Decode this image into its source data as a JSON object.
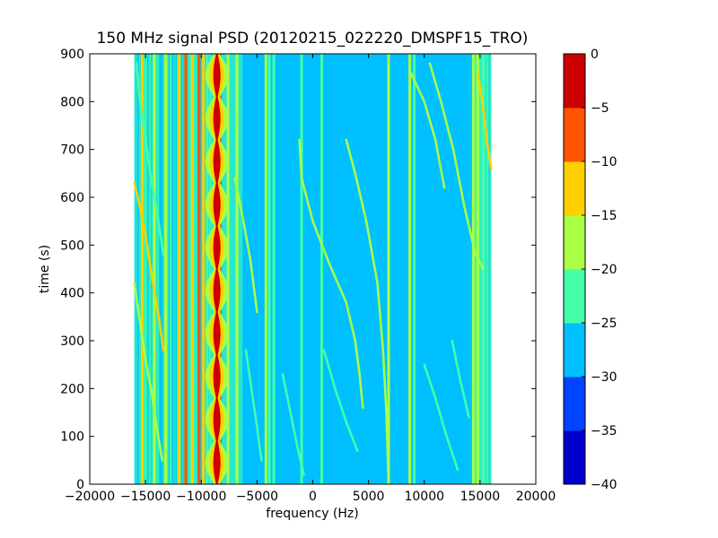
{
  "chart_data": {
    "type": "heatmap",
    "title": "150 MHz signal PSD (20120215_022220_DMSPF15_TRO)",
    "xlabel": "frequency (Hz)",
    "ylabel": "time (s)",
    "xlim": [
      -20000,
      20000
    ],
    "ylim": [
      0,
      900
    ],
    "x_ticks": [
      -20000,
      -15000,
      -10000,
      -5000,
      0,
      5000,
      10000,
      15000,
      20000
    ],
    "x_tick_labels": [
      "−20000",
      "−15000",
      "−10000",
      "−5000",
      "0",
      "5000",
      "10000",
      "15000",
      "20000"
    ],
    "y_ticks": [
      0,
      100,
      200,
      300,
      400,
      500,
      600,
      700,
      800,
      900
    ],
    "y_tick_labels": [
      "0",
      "100",
      "200",
      "300",
      "400",
      "500",
      "600",
      "700",
      "800",
      "900"
    ],
    "data_extent_x": [
      -16000,
      16000
    ],
    "background_level": -27,
    "colorbar": {
      "levels": [
        -40,
        -35,
        -30,
        -25,
        -20,
        -15,
        -10,
        -5,
        0
      ],
      "tick_labels": [
        "−40",
        "−35",
        "−30",
        "−25",
        "−20",
        "−15",
        "−10",
        "−5",
        "0"
      ],
      "colors": [
        "#0000cd",
        "#0044ff",
        "#00c0ff",
        "#44ffaa",
        "#aaff44",
        "#ffd000",
        "#ff5500",
        "#cc0000"
      ]
    },
    "vertical_lines": [
      {
        "x": -15300,
        "level": -14
      },
      {
        "x": -14200,
        "level": -20
      },
      {
        "x": -13200,
        "level": -18
      },
      {
        "x": -12000,
        "level": -15
      },
      {
        "x": -11400,
        "level": -8
      },
      {
        "x": -10800,
        "level": -12
      },
      {
        "x": -10200,
        "level": -7
      },
      {
        "x": -9800,
        "level": -14
      },
      {
        "x": -8700,
        "level": -3
      },
      {
        "x": -8300,
        "level": -10
      },
      {
        "x": -7600,
        "level": -18
      },
      {
        "x": -6800,
        "level": -20
      },
      {
        "x": -4200,
        "level": -18
      },
      {
        "x": -3900,
        "level": -22
      },
      {
        "x": -3500,
        "level": -22
      },
      {
        "x": -1000,
        "level": -22
      },
      {
        "x": 800,
        "level": -22
      },
      {
        "x": 6800,
        "level": -20
      },
      {
        "x": 8700,
        "level": -18
      },
      {
        "x": 9100,
        "level": -22
      },
      {
        "x": 14400,
        "level": -17
      },
      {
        "x": 14800,
        "level": -18
      },
      {
        "x": 15300,
        "level": -22
      }
    ],
    "tracks": [
      {
        "level": -18,
        "points": [
          [
            -1200,
            720
          ],
          [
            -1000,
            640
          ],
          [
            0,
            550
          ],
          [
            1500,
            460
          ],
          [
            3000,
            380
          ],
          [
            3800,
            300
          ],
          [
            4200,
            230
          ],
          [
            4400,
            180
          ],
          [
            4500,
            160
          ]
        ]
      },
      {
        "level": -20,
        "points": [
          [
            3000,
            720
          ],
          [
            3800,
            650
          ],
          [
            4800,
            550
          ],
          [
            5800,
            420
          ],
          [
            6300,
            280
          ],
          [
            6600,
            150
          ],
          [
            6800,
            0
          ]
        ]
      },
      {
        "level": -20,
        "points": [
          [
            8800,
            860
          ],
          [
            10000,
            800
          ],
          [
            11000,
            720
          ],
          [
            11800,
            620
          ]
        ]
      },
      {
        "level": -20,
        "points": [
          [
            10500,
            880
          ],
          [
            11500,
            800
          ],
          [
            12600,
            700
          ],
          [
            13600,
            580
          ],
          [
            14600,
            480
          ],
          [
            15300,
            450
          ]
        ]
      },
      {
        "level": -14,
        "points": [
          [
            14800,
            860
          ],
          [
            15200,
            800
          ],
          [
            15600,
            720
          ],
          [
            16000,
            660
          ]
        ]
      },
      {
        "level": -22,
        "points": [
          [
            -15800,
            880
          ],
          [
            -15500,
            800
          ],
          [
            -15000,
            720
          ],
          [
            -14500,
            640
          ],
          [
            -13900,
            560
          ],
          [
            -13400,
            480
          ]
        ]
      },
      {
        "level": -14,
        "points": [
          [
            -16000,
            630
          ],
          [
            -15500,
            580
          ],
          [
            -15000,
            520
          ],
          [
            -14400,
            430
          ],
          [
            -13800,
            350
          ],
          [
            -13400,
            280
          ]
        ]
      },
      {
        "level": -20,
        "points": [
          [
            -16000,
            420
          ],
          [
            -15500,
            340
          ],
          [
            -15000,
            260
          ],
          [
            -14500,
            200
          ],
          [
            -14000,
            120
          ],
          [
            -13500,
            50
          ]
        ]
      },
      {
        "level": -20,
        "points": [
          [
            -7000,
            640
          ],
          [
            -6300,
            560
          ],
          [
            -5600,
            470
          ],
          [
            -5000,
            360
          ]
        ]
      },
      {
        "level": -22,
        "points": [
          [
            -6000,
            280
          ],
          [
            -5500,
            200
          ],
          [
            -5000,
            120
          ],
          [
            -4600,
            50
          ]
        ]
      },
      {
        "level": -22,
        "points": [
          [
            -2700,
            230
          ],
          [
            -2000,
            150
          ],
          [
            -1400,
            80
          ],
          [
            -800,
            20
          ]
        ]
      },
      {
        "level": -22,
        "points": [
          [
            1000,
            280
          ],
          [
            2000,
            200
          ],
          [
            3000,
            130
          ],
          [
            4000,
            70
          ]
        ]
      },
      {
        "level": -22,
        "points": [
          [
            10000,
            250
          ],
          [
            11000,
            180
          ],
          [
            12000,
            100
          ],
          [
            13000,
            30
          ]
        ]
      },
      {
        "level": -22,
        "points": [
          [
            12500,
            300
          ],
          [
            13200,
            220
          ],
          [
            14000,
            140
          ]
        ]
      }
    ],
    "bright_column": {
      "x": -8600,
      "level": -1,
      "period_s": 90,
      "max_half_width_hz": 500
    }
  }
}
